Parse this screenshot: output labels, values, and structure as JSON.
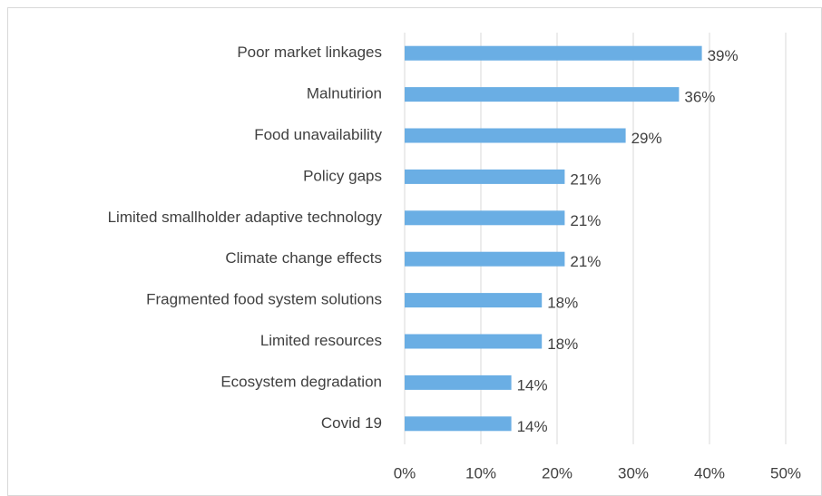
{
  "chart_data": {
    "type": "bar",
    "orientation": "horizontal",
    "categories": [
      "Poor market linkages",
      "Malnutirion",
      "Food unavailability",
      "Policy gaps",
      "Limited smallholder adaptive technology",
      "Climate change effects",
      "Fragmented food system solutions",
      "Limited resources",
      "Ecosystem degradation",
      "Covid 19"
    ],
    "values": [
      39,
      36,
      29,
      21,
      21,
      21,
      18,
      18,
      14,
      14
    ],
    "value_labels": [
      "39%",
      "36%",
      "29%",
      "21%",
      "21%",
      "21%",
      "18%",
      "18%",
      "14%",
      "14%"
    ],
    "color": "#6aaee4",
    "xlim": [
      0,
      50
    ],
    "xticks": [
      {
        "value": 0,
        "label": "0%"
      },
      {
        "value": 10,
        "label": "10%"
      },
      {
        "value": 20,
        "label": "20%"
      },
      {
        "value": 30,
        "label": "30%"
      },
      {
        "value": 40,
        "label": "40%"
      },
      {
        "value": 50,
        "label": "50%"
      }
    ],
    "grid": true
  }
}
